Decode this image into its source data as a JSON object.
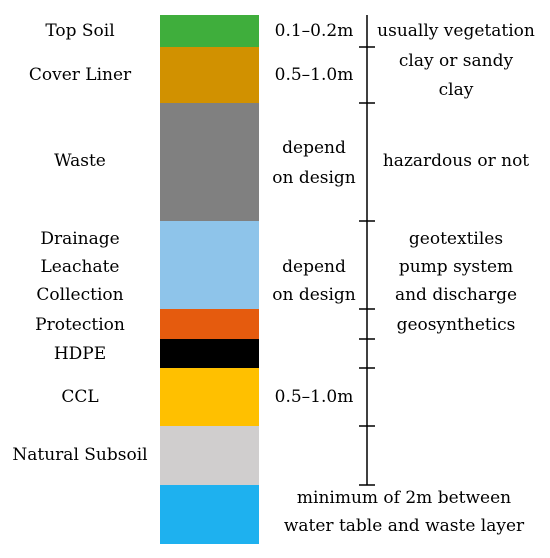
{
  "layers": [
    {
      "name": "Top Soil",
      "color": "#3fae3c"
    },
    {
      "name": "Cover Liner",
      "color": "#d19100"
    },
    {
      "name": "Waste",
      "color": "#808080"
    },
    {
      "name_lines": [
        "Drainage",
        "Leachate",
        "Collection"
      ],
      "color": "#8ec4ea"
    },
    {
      "name": "Protection",
      "color": "#e55b0e"
    },
    {
      "name": "HDPE",
      "color": "#000000"
    },
    {
      "name": "CCL",
      "color": "#ffc000"
    },
    {
      "name": "Natural Subsoil",
      "color": "#d0cece"
    },
    {
      "name": "",
      "color": "#1eb1ef"
    }
  ],
  "thickness": {
    "top_soil": "0.1–0.2m",
    "cover_liner": "0.5–1.0m",
    "waste": [
      "depend",
      "on design"
    ],
    "drainage": [
      "depend",
      "on design"
    ],
    "ccl": "0.5–1.0m"
  },
  "notes": {
    "top_soil": "usually vegetation",
    "cover_liner": [
      "clay or sandy",
      "clay"
    ],
    "waste": "hazardous or not",
    "drainage": [
      "geotextiles",
      "pump system",
      "and discharge"
    ],
    "protection": "geosynthetics",
    "water": [
      "minimum of 2m between",
      "water table and waste layer"
    ]
  }
}
